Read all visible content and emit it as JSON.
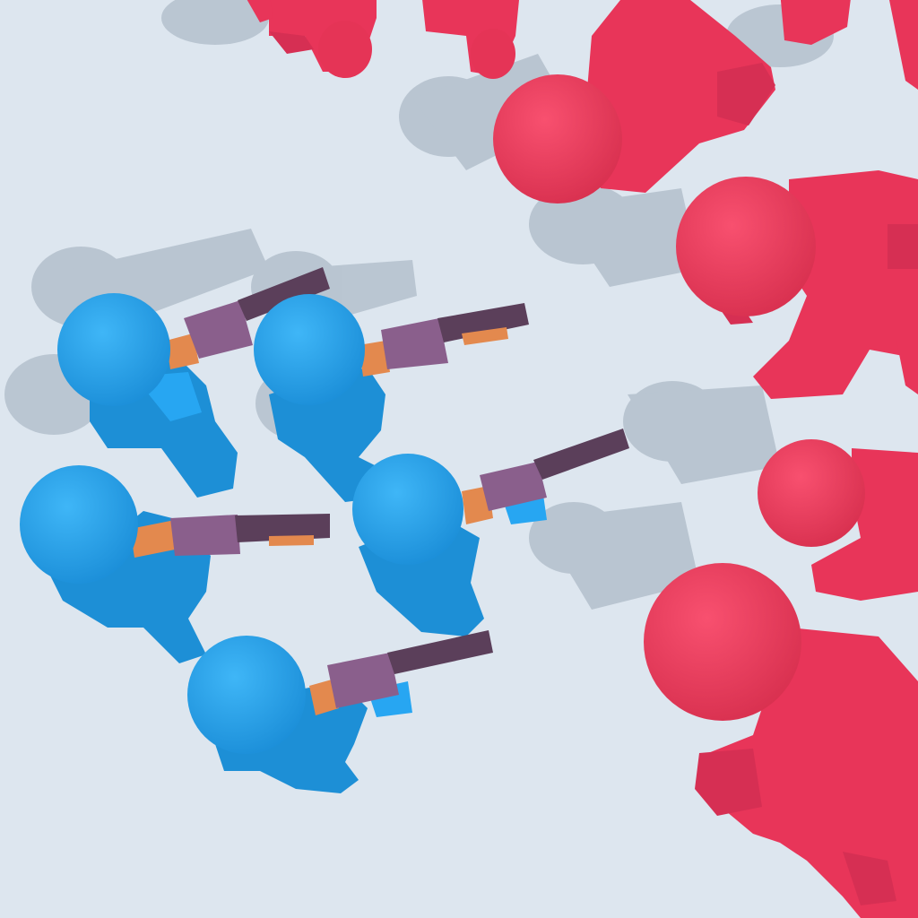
{
  "scene": {
    "floor_color": "#dde6ef",
    "shadow_color": "#b6c2ce",
    "player_team": {
      "color": "#27a6f2",
      "color_shade": "#1d8fd6",
      "weapon": "shotgun",
      "weapon_barrel_color": "#5b3f5a",
      "weapon_stock_color": "#8a5f8c",
      "weapon_grip_color": "#e3894e",
      "unit_count": 5
    },
    "enemy_team": {
      "color": "#f23f64",
      "color_shade": "#d62f53",
      "unit_count": 10
    }
  }
}
